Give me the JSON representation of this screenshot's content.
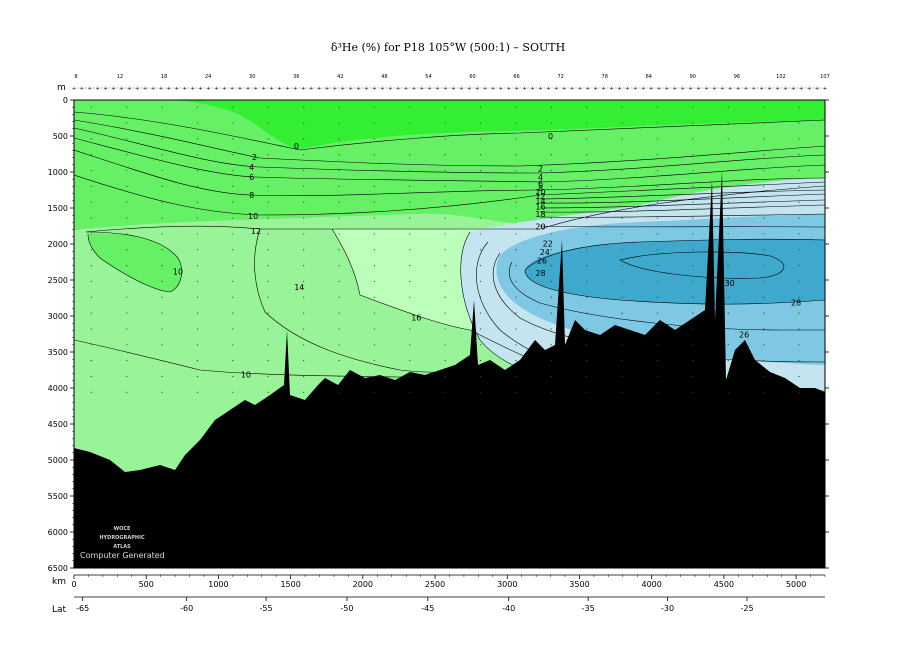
{
  "chart_data": {
    "type": "contour",
    "title": "δ³He (%) for P18 105°W (500:1) – SOUTH",
    "x_axis": {
      "label": "km",
      "range": [
        0,
        5200
      ],
      "ticks": [
        0,
        500,
        1000,
        1500,
        2000,
        2500,
        3000,
        3500,
        4000,
        4500,
        5000
      ]
    },
    "lat_axis": {
      "label": "Lat",
      "ticks": [
        {
          "km": 60,
          "lat": "-65"
        },
        {
          "km": 780,
          "lat": "-60"
        },
        {
          "km": 1330,
          "lat": "-55"
        },
        {
          "km": 1890,
          "lat": "-50"
        },
        {
          "km": 2450,
          "lat": "-45"
        },
        {
          "km": 3010,
          "lat": "-40"
        },
        {
          "km": 3560,
          "lat": "-35"
        },
        {
          "km": 4110,
          "lat": "-30"
        },
        {
          "km": 4660,
          "lat": "-25"
        }
      ]
    },
    "y_axis": {
      "label": "m",
      "range": [
        0,
        6500
      ],
      "inverted": true,
      "ticks": [
        0,
        500,
        1000,
        1500,
        2000,
        2500,
        3000,
        3500,
        4000,
        4500,
        5000,
        5500,
        6000,
        6500
      ]
    },
    "station_labels": [
      "8",
      "12",
      "18",
      "24",
      "30",
      "36",
      "42",
      "48",
      "54",
      "60",
      "66",
      "72",
      "78",
      "84",
      "90",
      "96",
      "102",
      "107"
    ],
    "contour_labels": [
      {
        "text": "0",
        "km": 1540,
        "depth": 640
      },
      {
        "text": "0",
        "km": 3300,
        "depth": 500
      },
      {
        "text": "2",
        "km": 1250,
        "depth": 790
      },
      {
        "text": "4",
        "km": 1230,
        "depth": 930
      },
      {
        "text": "6",
        "km": 1230,
        "depth": 1070
      },
      {
        "text": "8",
        "km": 1230,
        "depth": 1320
      },
      {
        "text": "10",
        "km": 1240,
        "depth": 1610
      },
      {
        "text": "12",
        "km": 1260,
        "depth": 1820
      },
      {
        "text": "10",
        "km": 720,
        "depth": 2380
      },
      {
        "text": "14",
        "km": 1560,
        "depth": 2600
      },
      {
        "text": "16",
        "km": 2370,
        "depth": 3020
      },
      {
        "text": "10",
        "km": 1190,
        "depth": 3810
      },
      {
        "text": "12",
        "km": 2480,
        "depth": 3850
      },
      {
        "text": "2",
        "km": 3230,
        "depth": 950
      },
      {
        "text": "4",
        "km": 3230,
        "depth": 1070
      },
      {
        "text": "6",
        "km": 3230,
        "depth": 1160
      },
      {
        "text": "8",
        "km": 3230,
        "depth": 1220
      },
      {
        "text": "10",
        "km": 3230,
        "depth": 1280
      },
      {
        "text": "12",
        "km": 3230,
        "depth": 1330
      },
      {
        "text": "14",
        "km": 3230,
        "depth": 1400
      },
      {
        "text": "16",
        "km": 3230,
        "depth": 1480
      },
      {
        "text": "18",
        "km": 3230,
        "depth": 1580
      },
      {
        "text": "20",
        "km": 3230,
        "depth": 1760
      },
      {
        "text": "22",
        "km": 3280,
        "depth": 1990
      },
      {
        "text": "24",
        "km": 3260,
        "depth": 2110
      },
      {
        "text": "26",
        "km": 3240,
        "depth": 2230
      },
      {
        "text": "28",
        "km": 3230,
        "depth": 2400
      },
      {
        "text": "30",
        "km": 4540,
        "depth": 2540
      },
      {
        "text": "28",
        "km": 5000,
        "depth": 2810
      },
      {
        "text": "26",
        "km": 4640,
        "depth": 3260
      },
      {
        "text": "28",
        "km": 3410,
        "depth": 3630
      }
    ],
    "fill_levels": [
      {
        "range": "<0",
        "color": "#33ee33"
      },
      {
        "range": "0-10",
        "color": "#66f066"
      },
      {
        "range": "10-15",
        "color": "#99f499"
      },
      {
        "range": "15-20",
        "color": "#bbffbb"
      },
      {
        "range": "20-25",
        "color": "#c4e4f0"
      },
      {
        "range": "25-28",
        "color": "#7ec8e4"
      },
      {
        "range": ">28",
        "color": "#3fa9cd"
      }
    ],
    "bottom_color": "#000000",
    "grid": false
  },
  "watermark": {
    "logo_lines": [
      "WOCE",
      "HYDROGRAPHIC",
      "ATLAS"
    ],
    "generated_text": "Computer Generated"
  }
}
